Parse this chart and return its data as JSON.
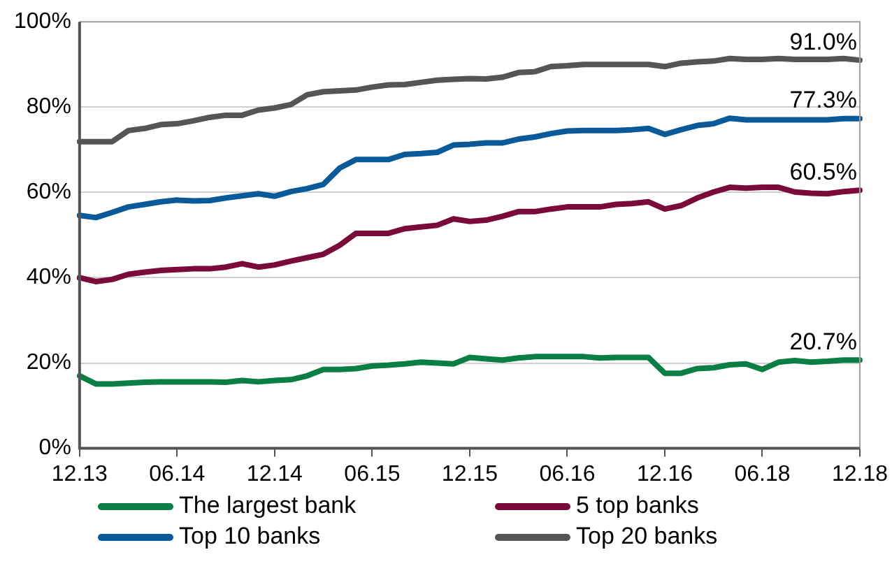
{
  "chart_data": {
    "type": "line",
    "categories": [
      "12.13",
      null,
      null,
      null,
      null,
      null,
      "06.14",
      null,
      null,
      null,
      null,
      null,
      "12.14",
      null,
      null,
      null,
      null,
      null,
      "06.15",
      null,
      null,
      null,
      null,
      null,
      "12.15",
      null,
      null,
      null,
      null,
      null,
      "06.16",
      null,
      null,
      null,
      null,
      null,
      "12.16",
      null,
      null,
      null,
      null,
      null,
      "06.18",
      null,
      null,
      null,
      null,
      null,
      "12.18"
    ],
    "series": [
      {
        "name": "The largest bank",
        "color": "#0a7e44",
        "values": [
          17,
          15.1,
          15.1,
          15.3,
          15.5,
          15.6,
          15.6,
          15.6,
          15.6,
          15.5,
          15.9,
          15.6,
          15.9,
          16.1,
          17,
          18.5,
          18.5,
          18.7,
          19.3,
          19.5,
          19.8,
          20.2,
          20,
          19.8,
          21.3,
          21,
          20.7,
          21.2,
          21.5,
          21.5,
          21.5,
          21.5,
          21.2,
          21.3,
          21.3,
          21.3,
          17.6,
          17.6,
          18.7,
          18.9,
          19.6,
          19.8,
          18.5,
          20.2,
          20.6,
          20.2,
          20.4,
          20.7,
          20.7
        ],
        "value_labels": [
          null,
          null,
          null,
          null,
          null,
          null,
          null,
          null,
          null,
          null,
          null,
          null,
          null,
          null,
          null,
          null,
          null,
          null,
          null,
          null,
          null,
          null,
          null,
          null,
          null,
          null,
          null,
          null,
          null,
          null,
          null,
          null,
          null,
          null,
          null,
          null,
          null,
          null,
          null,
          null,
          null,
          null,
          null,
          null,
          null,
          null,
          null,
          null,
          "20.7%"
        ]
      },
      {
        "name": "5 top banks",
        "color": "#7a0a3a",
        "values": [
          40,
          39.1,
          39.6,
          40.8,
          41.3,
          41.7,
          41.9,
          42.1,
          42.1,
          42.5,
          43.3,
          42.5,
          43,
          43.9,
          44.7,
          45.5,
          47.6,
          50.4,
          50.4,
          50.4,
          51.5,
          51.9,
          52.3,
          53.8,
          53.2,
          53.5,
          54.4,
          55.5,
          55.5,
          56.1,
          56.6,
          56.6,
          56.6,
          57.2,
          57.4,
          57.8,
          56.1,
          56.9,
          58.7,
          60.1,
          61.2,
          61,
          61.2,
          61.2,
          60.1,
          59.8,
          59.7,
          60.2,
          60.5
        ],
        "value_labels": [
          null,
          null,
          null,
          null,
          null,
          null,
          null,
          null,
          null,
          null,
          null,
          null,
          null,
          null,
          null,
          null,
          null,
          null,
          null,
          null,
          null,
          null,
          null,
          null,
          null,
          null,
          null,
          null,
          null,
          null,
          null,
          null,
          null,
          null,
          null,
          null,
          null,
          null,
          null,
          null,
          null,
          null,
          null,
          null,
          null,
          null,
          null,
          null,
          "60.5%"
        ]
      },
      {
        "name": "Top 10 banks",
        "color": "#0a5a9a",
        "values": [
          54.6,
          54.1,
          55.3,
          56.6,
          57.2,
          57.8,
          58.2,
          58,
          58.1,
          58.7,
          59.2,
          59.7,
          59.1,
          60.2,
          60.9,
          61.9,
          65.7,
          67.7,
          67.7,
          67.7,
          68.9,
          69.1,
          69.4,
          71.1,
          71.3,
          71.6,
          71.6,
          72.5,
          73,
          73.8,
          74.4,
          74.5,
          74.5,
          74.5,
          74.7,
          75,
          73.6,
          74.7,
          75.7,
          76.1,
          77.4,
          77,
          77,
          77,
          77,
          77,
          77,
          77.3,
          77.3
        ],
        "value_labels": [
          null,
          null,
          null,
          null,
          null,
          null,
          null,
          null,
          null,
          null,
          null,
          null,
          null,
          null,
          null,
          null,
          null,
          null,
          null,
          null,
          null,
          null,
          null,
          null,
          null,
          null,
          null,
          null,
          null,
          null,
          null,
          null,
          null,
          null,
          null,
          null,
          null,
          null,
          null,
          null,
          null,
          null,
          null,
          null,
          null,
          null,
          null,
          null,
          "77.3%"
        ]
      },
      {
        "name": "Top 20 banks",
        "color": "#555555",
        "values": [
          71.9,
          71.9,
          71.9,
          74.5,
          75,
          75.9,
          76.1,
          76.8,
          77.6,
          78.1,
          78.1,
          79.3,
          79.8,
          80.6,
          82.9,
          83.6,
          83.8,
          84,
          84.7,
          85.2,
          85.3,
          85.8,
          86.3,
          86.5,
          86.7,
          86.6,
          87,
          88.1,
          88.3,
          89.5,
          89.7,
          90,
          90,
          90,
          90,
          90,
          89.5,
          90.3,
          90.6,
          90.8,
          91.4,
          91.2,
          91.2,
          91.4,
          91.2,
          91.2,
          91.2,
          91.4,
          91
        ],
        "value_labels": [
          null,
          null,
          null,
          null,
          null,
          null,
          null,
          null,
          null,
          null,
          null,
          null,
          null,
          null,
          null,
          null,
          null,
          null,
          null,
          null,
          null,
          null,
          null,
          null,
          null,
          null,
          null,
          null,
          null,
          null,
          null,
          null,
          null,
          null,
          null,
          null,
          null,
          null,
          null,
          null,
          null,
          null,
          null,
          null,
          null,
          null,
          null,
          null,
          "91.0%"
        ]
      }
    ],
    "ylim": [
      0,
      100
    ],
    "yticks": [
      {
        "value": 0,
        "label": "0%"
      },
      {
        "value": 20,
        "label": "20%"
      },
      {
        "value": 40,
        "label": "40%"
      },
      {
        "value": 60,
        "label": "60%"
      },
      {
        "value": 80,
        "label": "80%"
      },
      {
        "value": 100,
        "label": "100%"
      }
    ],
    "grid": "y",
    "legend": "bottom",
    "marker": "none",
    "line_style": "solid"
  }
}
